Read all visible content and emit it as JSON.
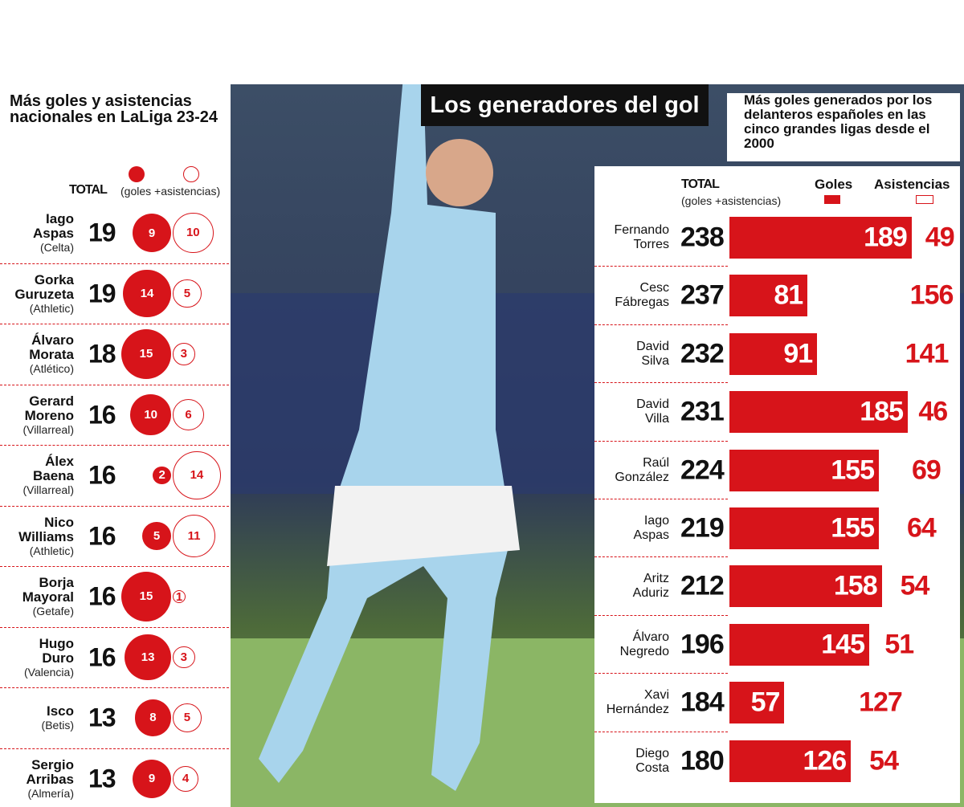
{
  "header": {
    "title": "Los generadores del gol"
  },
  "chart_data": [
    {
      "type": "bubble",
      "title": "Más goles y asistencias nacionales en LaLiga 23-24",
      "total_label": "TOTAL",
      "total_note": "(goles +asistencias)",
      "categories": [
        "Iago Aspas",
        "Gorka Guruzeta",
        "Álvaro Morata",
        "Gerard Moreno",
        "Álex Baena",
        "Nico Williams",
        "Borja Mayoral",
        "Hugo Duro",
        "Isco",
        "Sergio Arribas"
      ],
      "teams": [
        "(Celta)",
        "(Athletic)",
        "(Atlético)",
        "(Villarreal)",
        "(Villarreal)",
        "(Athletic)",
        "(Getafe)",
        "(Valencia)",
        "(Betis)",
        "(Almería)"
      ],
      "totals": [
        19,
        19,
        18,
        16,
        16,
        16,
        16,
        16,
        13,
        13
      ],
      "series": [
        {
          "color": "#d7141a",
          "values": [
            9,
            14,
            15,
            10,
            2,
            5,
            15,
            13,
            8,
            9
          ]
        },
        {
          "color": "#ffffff",
          "values": [
            10,
            5,
            3,
            6,
            14,
            11,
            1,
            3,
            5,
            4
          ]
        }
      ]
    },
    {
      "type": "bar",
      "title": "Más goles generados por los delanteros españoles en las cinco grandes ligas desde el 2000",
      "total_label": "TOTAL",
      "total_note": "(goles +asistencias)",
      "categories": [
        "Fernando Torres",
        "Cesc Fábregas",
        "David Silva",
        "David Villa",
        "Raúl González",
        "Iago Aspas",
        "Aritz Aduriz",
        "Álvaro Negredo",
        "Xavi Hernández",
        "Diego Costa"
      ],
      "totals": [
        238,
        237,
        232,
        231,
        224,
        219,
        212,
        196,
        184,
        180
      ],
      "series": [
        {
          "name": "Goles",
          "color": "#d7141a",
          "values": [
            189,
            81,
            91,
            185,
            155,
            155,
            158,
            145,
            57,
            126
          ]
        },
        {
          "name": "Asistencias",
          "color": "#ffffff",
          "values": [
            49,
            156,
            141,
            46,
            69,
            64,
            54,
            51,
            127,
            54
          ]
        }
      ]
    }
  ]
}
